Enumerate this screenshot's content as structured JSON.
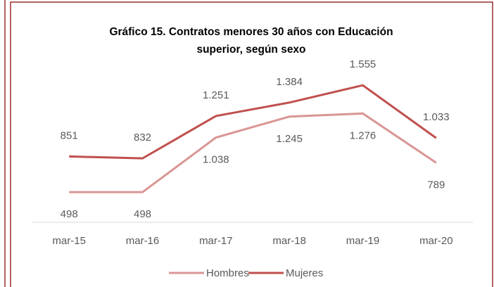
{
  "chart_data": {
    "type": "line",
    "title": "Gráfico 15. Contratos menores 30 años con Educación superior, según sexo",
    "categories": [
      "mar-15",
      "mar-16",
      "mar-17",
      "mar-18",
      "mar-19",
      "mar-20"
    ],
    "series": [
      {
        "name": "Hombres",
        "color": "#d99694",
        "values": [
          498,
          498,
          1038,
          1245,
          1276,
          789
        ],
        "value_labels": [
          "498",
          "498",
          "1.038",
          "1.245",
          "1.276",
          "789"
        ]
      },
      {
        "name": "Mujeres",
        "color": "#c0504d",
        "values": [
          851,
          832,
          1251,
          1384,
          1555,
          1033
        ],
        "value_labels": [
          "851",
          "832",
          "1.251",
          "1.384",
          "1.555",
          "1.033"
        ]
      }
    ],
    "ylim": [
      200,
      1800
    ],
    "legend": "bottom"
  }
}
